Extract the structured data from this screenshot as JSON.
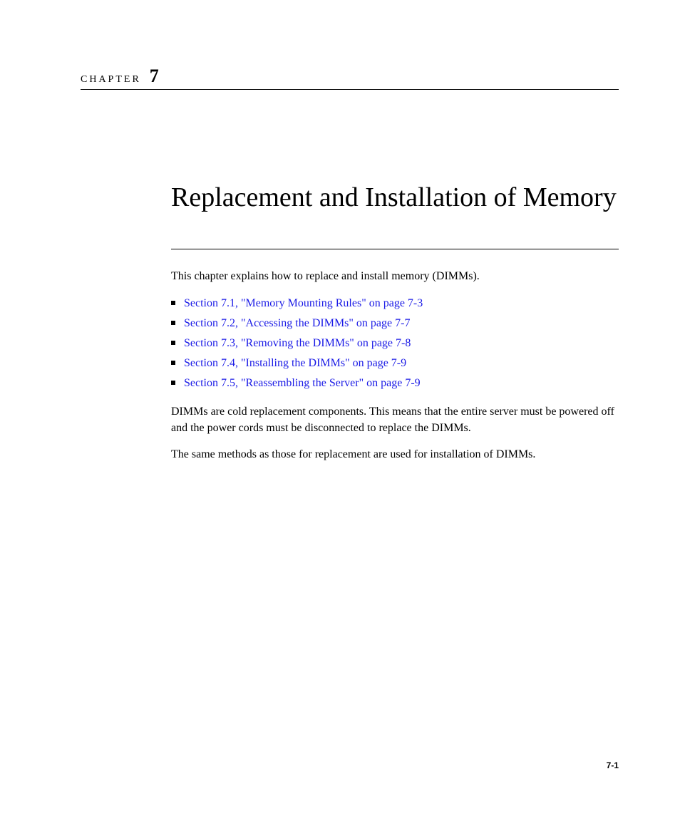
{
  "chapter": {
    "label": "CHAPTER",
    "number": "7"
  },
  "title": "Replacement and Installation of Memory",
  "intro": "This chapter explains how to replace and install memory (DIMMs).",
  "toc": [
    "Section 7.1, \"Memory Mounting Rules\" on page 7-3",
    "Section 7.2, \"Accessing the DIMMs\" on page 7-7",
    "Section 7.3, \"Removing the DIMMs\" on page 7-8",
    "Section 7.4, \"Installing the DIMMs\" on page 7-9",
    "Section 7.5, \"Reassembling the Server\" on page 7-9"
  ],
  "paragraphs": [
    "DIMMs are cold replacement components. This means that the entire server must be powered off and the power cords must be disconnected to replace the DIMMs.",
    "The same methods as those for replacement are used for installation of DIMMs."
  ],
  "page_number": "7-1",
  "colors": {
    "link": "#1a1ae6",
    "text": "#000000",
    "background": "#ffffff"
  }
}
